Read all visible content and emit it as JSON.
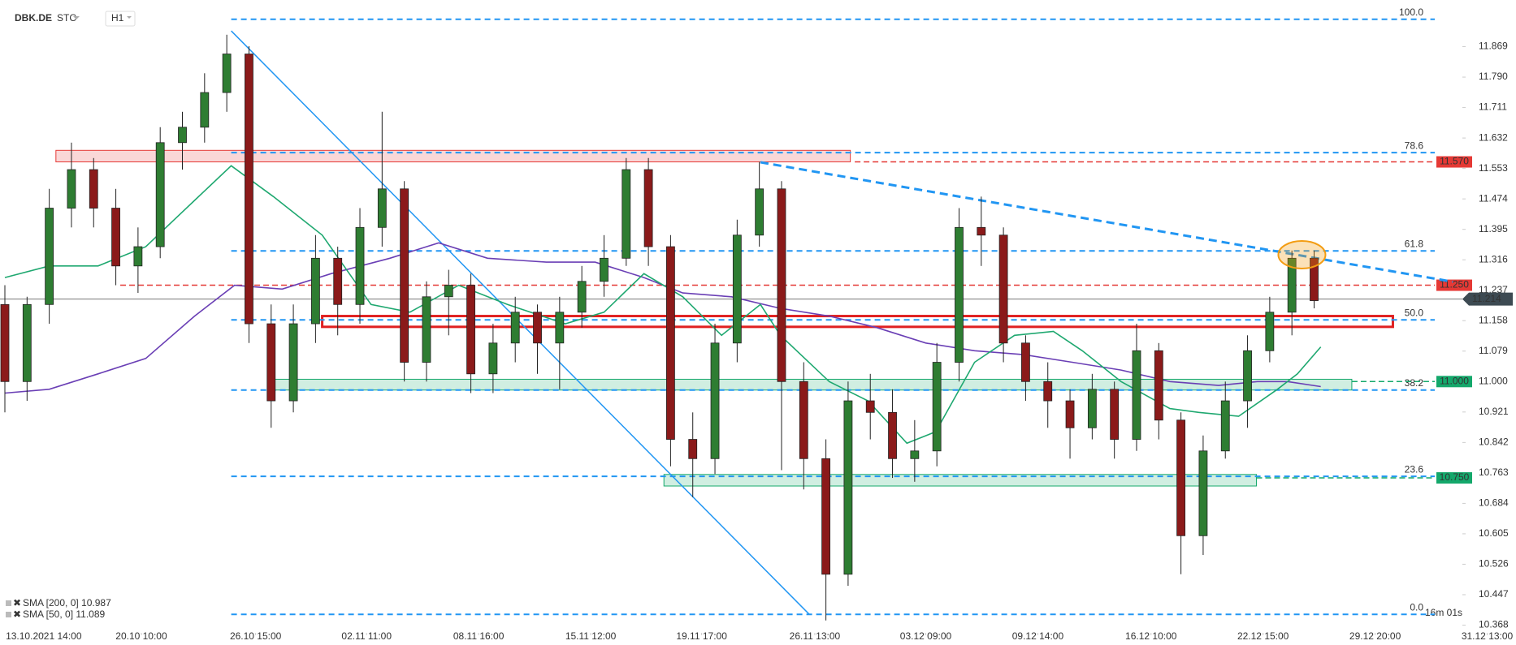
{
  "chart_data": {
    "type": "candlestick",
    "symbol": "DBK.DE",
    "mode": "STC",
    "interval": "H1",
    "timer": "16m 01s",
    "up_color": "#2e7d32",
    "down_color": "#8b1a1a",
    "x": [
      0,
      2,
      4,
      6,
      8,
      10,
      12,
      14,
      16,
      18,
      20,
      22,
      24,
      26,
      28,
      30,
      32,
      34,
      36,
      38,
      40,
      42,
      44,
      46,
      48,
      50,
      52,
      54,
      56,
      58,
      60,
      62,
      64,
      66,
      68,
      70,
      72,
      74,
      76,
      78,
      80,
      82,
      84,
      86,
      88,
      90,
      92,
      94,
      96,
      98,
      100,
      102,
      104,
      106,
      108,
      110,
      112,
      114,
      116,
      118
    ],
    "open": [
      11.2,
      11.0,
      11.2,
      11.45,
      11.55,
      11.45,
      11.3,
      11.35,
      11.62,
      11.66,
      11.75,
      11.85,
      11.15,
      10.95,
      11.15,
      11.32,
      11.2,
      11.4,
      11.5,
      11.05,
      11.22,
      11.25,
      11.02,
      11.1,
      11.18,
      11.1,
      11.18,
      11.26,
      11.32,
      11.55,
      11.35,
      10.85,
      10.8,
      11.1,
      11.38,
      11.5,
      11.0,
      10.8,
      10.5,
      10.95,
      10.92,
      10.8,
      10.82,
      11.05,
      11.4,
      11.38,
      11.1,
      11.0,
      10.95,
      10.88,
      10.98,
      10.85,
      11.08,
      10.9,
      10.6,
      10.82,
      10.95,
      11.08,
      11.18,
      11.32
    ],
    "high": [
      11.25,
      11.22,
      11.5,
      11.62,
      11.58,
      11.5,
      11.4,
      11.66,
      11.7,
      11.8,
      11.9,
      11.87,
      11.2,
      11.2,
      11.38,
      11.35,
      11.45,
      11.7,
      11.52,
      11.26,
      11.29,
      11.28,
      11.15,
      11.22,
      11.2,
      11.22,
      11.3,
      11.38,
      11.58,
      11.58,
      11.38,
      10.92,
      11.15,
      11.42,
      11.57,
      11.52,
      11.05,
      10.85,
      11.0,
      11.02,
      10.98,
      10.9,
      11.1,
      11.45,
      11.48,
      11.4,
      11.12,
      11.05,
      10.98,
      11.02,
      11.0,
      11.15,
      11.1,
      10.92,
      10.86,
      11.0,
      11.12,
      11.22,
      11.34,
      11.34
    ],
    "low": [
      10.92,
      10.95,
      11.15,
      11.4,
      11.4,
      11.25,
      11.23,
      11.32,
      11.55,
      11.62,
      11.7,
      11.1,
      10.88,
      10.92,
      11.1,
      11.12,
      11.15,
      11.35,
      11.0,
      11.0,
      11.12,
      10.97,
      10.97,
      11.05,
      11.02,
      10.98,
      11.14,
      11.22,
      11.3,
      11.3,
      10.78,
      10.7,
      10.76,
      11.05,
      11.35,
      10.77,
      10.72,
      10.38,
      10.47,
      10.85,
      10.75,
      10.74,
      10.78,
      11.0,
      11.3,
      11.05,
      10.95,
      10.88,
      10.8,
      10.85,
      10.8,
      10.82,
      10.85,
      10.5,
      10.55,
      10.8,
      10.88,
      11.05,
      11.12,
      11.19
    ],
    "close": [
      11.0,
      11.2,
      11.45,
      11.55,
      11.45,
      11.3,
      11.35,
      11.62,
      11.66,
      11.75,
      11.85,
      11.15,
      10.95,
      11.15,
      11.32,
      11.2,
      11.4,
      11.5,
      11.05,
      11.22,
      11.25,
      11.02,
      11.1,
      11.18,
      11.1,
      11.18,
      11.26,
      11.32,
      11.55,
      11.35,
      10.85,
      10.8,
      11.1,
      11.38,
      11.5,
      11.0,
      10.8,
      10.5,
      10.95,
      10.92,
      10.8,
      10.82,
      11.05,
      11.4,
      11.38,
      11.1,
      11.0,
      10.95,
      10.88,
      10.98,
      10.85,
      11.08,
      10.9,
      10.6,
      10.82,
      10.95,
      11.08,
      11.18,
      11.32,
      11.21
    ],
    "series": [
      {
        "name": "SMA [200, 0] 10.987",
        "color": "#6a3fb5",
        "x": [
          0,
          4,
          8.4,
          12.7,
          17.1,
          20.7,
          25,
          29.4,
          34.7,
          39.1,
          43.5,
          48.8,
          53.2,
          57.6,
          61.1,
          65.5,
          69.9,
          74.3,
          78.6,
          83,
          87.4,
          91.8,
          96.2,
          100.6,
          105,
          109.4,
          112.9,
          115.6,
          118.6
        ],
        "values": [
          10.97,
          10.98,
          11.02,
          11.06,
          11.17,
          11.25,
          11.24,
          11.28,
          11.32,
          11.36,
          11.32,
          11.31,
          11.31,
          11.27,
          11.23,
          11.22,
          11.19,
          11.17,
          11.14,
          11.1,
          11.08,
          11.07,
          11.05,
          11.03,
          11.0,
          10.99,
          11.0,
          11.0,
          10.987
        ]
      },
      {
        "name": "SMA [50, 0] 11.089",
        "color": "#1fa870",
        "x": [
          0,
          4,
          8.4,
          12.7,
          17.1,
          20.4,
          24.2,
          28.6,
          33,
          36.5,
          40.9,
          45.3,
          50.5,
          54,
          57.6,
          61.1,
          64.6,
          68.1,
          69.9,
          74.3,
          77.8,
          81.3,
          83.9,
          87.4,
          91,
          94.5,
          97.1,
          100.6,
          105,
          107.6,
          111.2,
          114.7,
          116.5,
          118.6
        ],
        "values": [
          11.27,
          11.3,
          11.3,
          11.35,
          11.47,
          11.56,
          11.48,
          11.38,
          11.2,
          11.18,
          11.25,
          11.2,
          11.15,
          11.18,
          11.28,
          11.22,
          11.12,
          11.2,
          11.12,
          11.0,
          10.95,
          10.84,
          10.87,
          11.05,
          11.12,
          11.13,
          11.08,
          11.0,
          10.93,
          10.92,
          10.91,
          10.98,
          11.02,
          11.09
        ]
      }
    ],
    "fib_color": "#2196f3",
    "fib_start": 20.4,
    "fib_levels": [
      {
        "label": "100.0",
        "price": 11.94
      },
      {
        "label": "78.6",
        "price": 11.594
      },
      {
        "label": "61.8",
        "price": 11.339
      },
      {
        "label": "50.0",
        "price": 11.16
      },
      {
        "label": "38.2",
        "price": 10.978
      },
      {
        "label": "23.6",
        "price": 10.754
      },
      {
        "label": "0.0",
        "price": 10.396
      }
    ],
    "levels": [
      {
        "price": 11.57,
        "label": "11.570",
        "color": "#e53935",
        "x0": 76.6
      },
      {
        "price": 11.25,
        "label": "11.250",
        "color": "#e53935",
        "x0": 10.4
      },
      {
        "price": 11.0,
        "label": "11.000",
        "color": "#14a86b",
        "x0": 121.4
      },
      {
        "price": 10.75,
        "label": "10.750",
        "color": "#14a86b",
        "x0": 112.8
      }
    ],
    "current": {
      "price": 11.214,
      "label": "11.214",
      "color": "#3d4a52"
    },
    "zones": [
      {
        "x": [
          4.6,
          76.2
        ],
        "y": [
          11.57,
          11.6
        ],
        "color": "#e53935",
        "fill": "rgba(229,57,53,0.2)"
      },
      {
        "x": [
          28.6,
          125.1
        ],
        "y": [
          11.142,
          11.17
        ],
        "color": "#e02020",
        "fill": "none"
      },
      {
        "x": [
          23.9,
          121.4
        ],
        "y": [
          10.978,
          11.006
        ],
        "color": "#14a86b",
        "fill": "rgba(20,168,107,0.2)"
      },
      {
        "x": [
          59.4,
          112.8
        ],
        "y": [
          10.729,
          10.759
        ],
        "color": "#14a86b",
        "fill": "rgba(20,168,107,0.2)"
      }
    ],
    "trendlines": [
      {
        "x": [
          20.4,
          72.5
        ],
        "y": [
          11.91,
          10.396
        ],
        "color": "#2196f3",
        "dashed": false
      },
      {
        "x": [
          68.1,
          130.5
        ],
        "y": [
          11.569,
          11.259
        ],
        "color": "#2196f3",
        "dashed": true
      }
    ],
    "highlight": {
      "x": 116.9,
      "y": 11.329,
      "color": "#f39c12"
    },
    "xlim": [
      0,
      134
    ],
    "ylim": [
      10.348,
      11.948
    ],
    "xticks": [
      {
        "value": 3.5,
        "label": "13.10.2021 14:00"
      },
      {
        "value": 12.3,
        "label": "20.10 10:00"
      },
      {
        "value": 22.6,
        "label": "26.10 15:00"
      },
      {
        "value": 32.6,
        "label": "02.11 11:00"
      },
      {
        "value": 42.7,
        "label": "08.11 16:00"
      },
      {
        "value": 52.8,
        "label": "15.11 12:00"
      },
      {
        "value": 62.8,
        "label": "19.11 17:00"
      },
      {
        "value": 73,
        "label": "26.11 13:00"
      },
      {
        "value": 83,
        "label": "03.12 09:00"
      },
      {
        "value": 93.1,
        "label": "09.12 14:00"
      },
      {
        "value": 103.3,
        "label": "16.12 10:00"
      },
      {
        "value": 113.4,
        "label": "22.12 15:00"
      },
      {
        "value": 123.5,
        "label": "29.12 20:00"
      },
      {
        "value": 133.6,
        "label": "31.12 13:00"
      }
    ],
    "yticks": [
      11.869,
      {
        "value": 11.79,
        "label": "11.790"
      },
      11.711,
      11.632,
      11.553,
      11.474,
      11.395,
      11.316,
      11.237,
      11.158,
      11.079,
      {
        "value": 11.0,
        "label": "11.000"
      },
      10.921,
      10.842,
      10.763,
      10.684,
      10.605,
      10.526,
      10.447,
      10.368
    ]
  }
}
